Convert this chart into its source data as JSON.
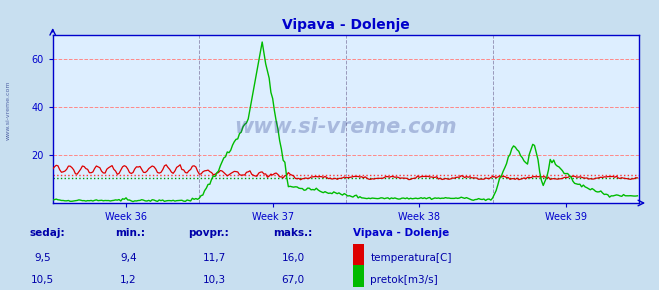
{
  "title": "Vipava - Dolenje",
  "title_color": "#0000cc",
  "bg_color": "#c8dff0",
  "plot_bg_color": "#ddeeff",
  "grid_color_h": "#ff8888",
  "grid_color_v": "#9999bb",
  "ylim": [
    0,
    70
  ],
  "yticks": [
    20,
    40,
    60
  ],
  "week_labels": [
    "Week 36",
    "Week 37",
    "Week 38",
    "Week 39"
  ],
  "temp_color": "#dd0000",
  "flow_color": "#00bb00",
  "avg_temp_color": "#ff3333",
  "avg_flow_color": "#009900",
  "axis_color": "#0000cc",
  "watermark": "www.si-vreme.com",
  "watermark_color": "#223388",
  "watermark_alpha": 0.28,
  "legend_title": "Vipava - Dolenje",
  "legend_title_color": "#0000cc",
  "label_color": "#0000aa",
  "sedaj_temp": "9,5",
  "min_temp": "9,4",
  "povpr_temp": "11,7",
  "maks_temp": "16,0",
  "sedaj_flow": "10,5",
  "min_flow": "1,2",
  "povpr_flow": "10,3",
  "maks_flow": "67,0",
  "avg_temp_val": 11.7,
  "avg_flow_val": 10.3,
  "n_points": 336
}
